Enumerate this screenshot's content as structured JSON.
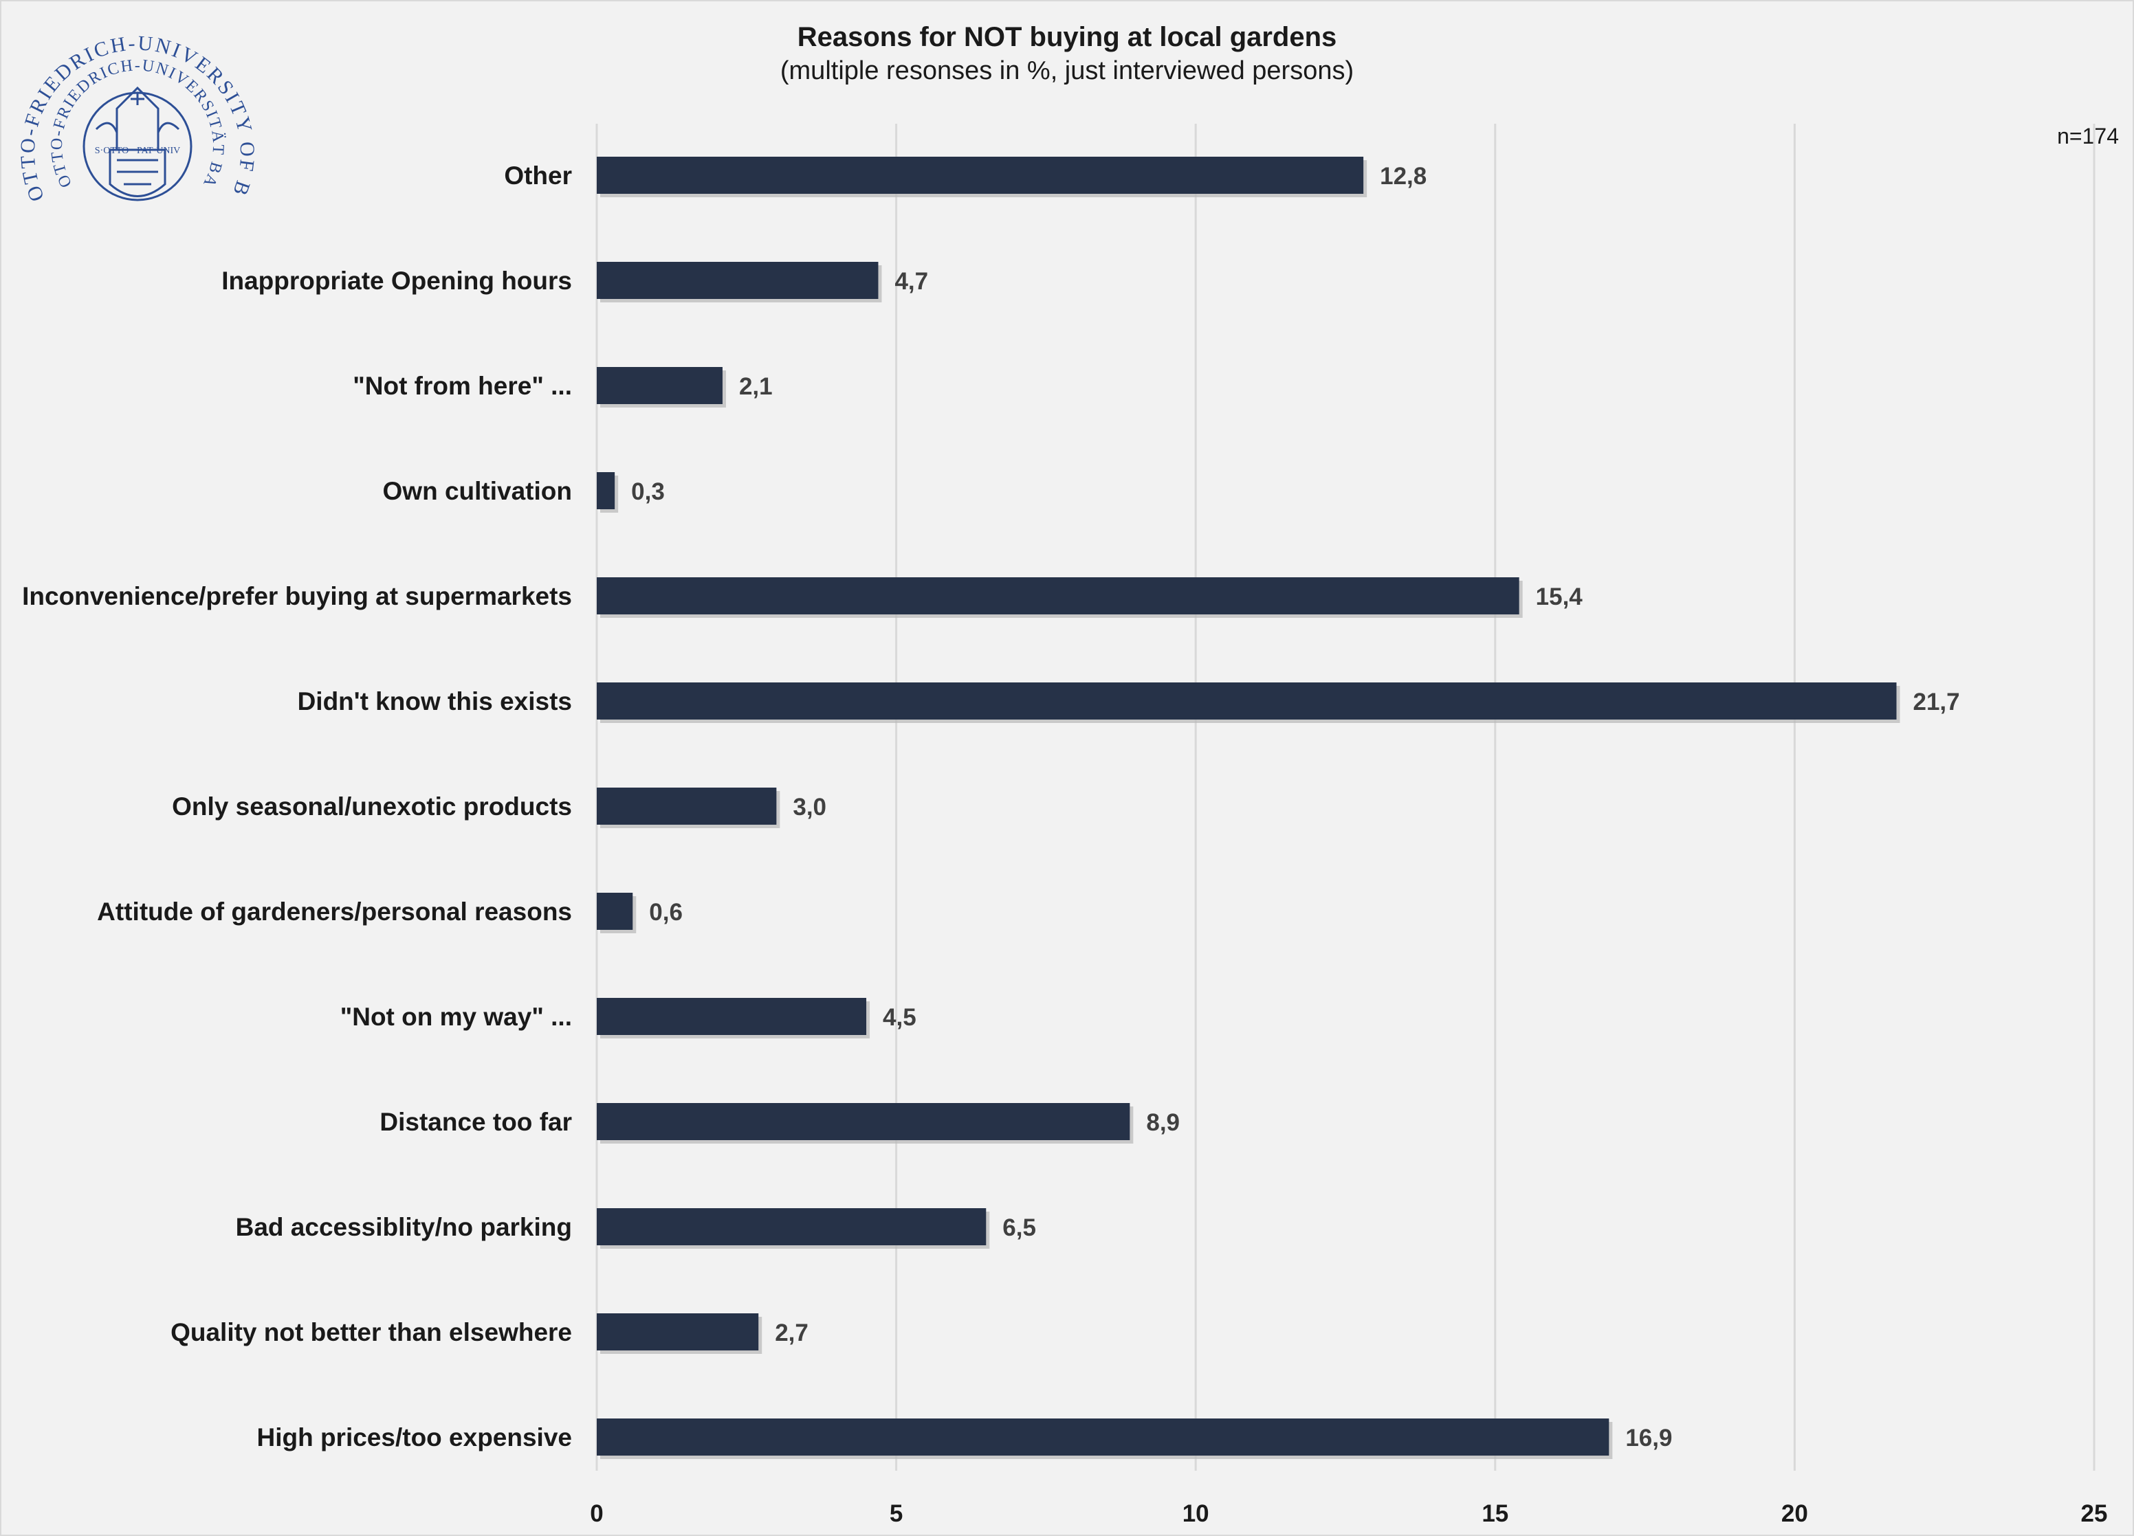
{
  "logo": {
    "text_outer": "OTTO-FRIEDRICH-UNIVERSITY OF BAMBERG",
    "text_inner": "OTTO-FRIEDRICH-UNIVERSITÄT BAMBERG",
    "text_center": "S·OTTO · PAT·UNIV"
  },
  "chart_data": {
    "type": "bar",
    "orientation": "horizontal",
    "title": "Reasons for NOT buying at local gardens",
    "subtitle": "(multiple resonses in %, just interviewed persons)",
    "note": "n=174",
    "categories": [
      "Other",
      "Inappropriate Opening hours",
      "\"Not from here\" ...",
      "Own cultivation",
      "Inconvenience/prefer buying at supermarkets",
      "Didn't know this exists",
      "Only seasonal/unexotic products",
      "Attitude of gardeners/personal reasons",
      "\"Not on my way\" ...",
      "Distance too far",
      "Bad accessiblity/no parking",
      "Quality not better than elsewhere",
      "High prices/too expensive"
    ],
    "values": [
      12.8,
      4.7,
      2.1,
      0.3,
      15.4,
      21.7,
      3.0,
      0.6,
      4.5,
      8.9,
      6.5,
      2.7,
      16.9
    ],
    "value_labels": [
      "12,8",
      "4,7",
      "2,1",
      "0,3",
      "15,4",
      "21,7",
      "3,0",
      "0,6",
      "4,5",
      "8,9",
      "6,5",
      "2,7",
      "16,9"
    ],
    "xlim": [
      0,
      25
    ],
    "xticks": [
      0,
      5,
      10,
      15,
      20,
      25
    ],
    "xtick_labels": [
      "0",
      "5",
      "10",
      "15",
      "20",
      "25"
    ],
    "grid": true,
    "bar_color": "#263248",
    "grid_color": "#d9d9d9"
  }
}
